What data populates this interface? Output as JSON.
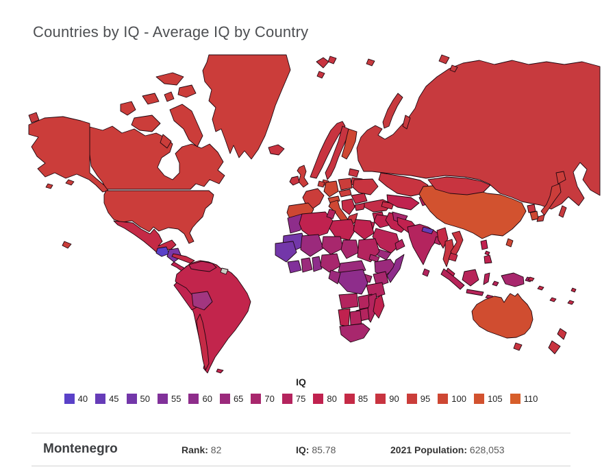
{
  "title": "Countries by IQ - Average IQ by Country",
  "legend": {
    "title": "IQ",
    "items": [
      {
        "value": "40",
        "color": "#5a41c8"
      },
      {
        "value": "45",
        "color": "#663cb8"
      },
      {
        "value": "50",
        "color": "#7337a9"
      },
      {
        "value": "55",
        "color": "#81319a"
      },
      {
        "value": "60",
        "color": "#8e2d8b"
      },
      {
        "value": "65",
        "color": "#9b2a7c"
      },
      {
        "value": "70",
        "color": "#a8276d"
      },
      {
        "value": "75",
        "color": "#b4245e"
      },
      {
        "value": "80",
        "color": "#c0224f"
      },
      {
        "value": "85",
        "color": "#c52a46"
      },
      {
        "value": "90",
        "color": "#c83440"
      },
      {
        "value": "95",
        "color": "#cb3d3a"
      },
      {
        "value": "100",
        "color": "#ce4733"
      },
      {
        "value": "105",
        "color": "#d2522f"
      },
      {
        "value": "110",
        "color": "#d75e2a"
      }
    ]
  },
  "info_bar": {
    "country": "Montenegro",
    "rank_label": "Rank:",
    "rank_value": "82",
    "iq_label": "IQ:",
    "iq_value": "85.78",
    "population_label": "2021 Population:",
    "population_value": "628,053"
  },
  "map": {
    "ocean_color": "#ffffff",
    "border_color": "#1d060f",
    "no_data_color": "#ccccc4",
    "regions": {
      "greenland": "#cb3d3a",
      "canada": "#cb3d3a",
      "usa": "#cb3d3a",
      "mexico": "#c52a46",
      "guatemala": "#5a41c8",
      "central-america": "#7b37a6",
      "costa-rica-panama": "#c0224f",
      "cuba": "#c52a46",
      "hispaniola": "#a8276d",
      "jamaica": "#a8276d",
      "south-america": "#c2254c",
      "venezuela": "#bd2351",
      "peru": "#c0224f",
      "chile": "#c52a46",
      "bolivia": "#a23680",
      "french-guiana": "#ccccc4",
      "falkland-islands": "#c2254c",
      "iceland": "#c83440",
      "uk": "#cb3d3a",
      "ireland": "#c83440",
      "norway": "#c83440",
      "sweden": "#c83440",
      "finland": "#ce4733",
      "denmark": "#cb3d3a",
      "baltics": "#c83440",
      "belarus": "#c83440",
      "poland": "#cb3d3a",
      "germany": "#ce4733",
      "benelux": "#cb3d3a",
      "france": "#cb3d3a",
      "iberia": "#ce4733",
      "italy": "#ce4733",
      "sicily": "#ce4733",
      "austria-alps": "#ce4733",
      "czech-slovakia": "#cb3d3a",
      "hungary-romania": "#c52a46",
      "balkans": "#c52a46",
      "bulgaria": "#c52a46",
      "greece": "#c83440",
      "ukraine": "#c83440",
      "russia": "#c73a3e",
      "kazakhstan": "#c83440",
      "central-asia": "#c0224f",
      "kyrgyz-tajik": "#b4245e",
      "caucasus": "#c52a46",
      "turkey": "#c42d48",
      "syria": "#c0224f",
      "levant": "#c0224f",
      "iraq": "#c0224f",
      "iran": "#c0224f",
      "saudi-arabia": "#ba2355",
      "yemen": "#9b2a7c",
      "oman": "#b4245e",
      "morocco": "#8e2d8b",
      "mauritania": "#7337a9",
      "algeria": "#c0224f",
      "tunisia": "#b4245e",
      "libya": "#c0224f",
      "egypt": "#c0224f",
      "mali": "#9b2a7c",
      "niger": "#a8276d",
      "chad": "#a8276d",
      "sudan": "#b4245e",
      "eritrea": "#a8276d",
      "senegal-guinea": "#7337a9",
      "sierra-liberia": "#81319a",
      "ivory-coast": "#9b2a7c",
      "ghana": "#8e2d8b",
      "nigeria": "#a8276d",
      "cameroon-car": "#9b2a7c",
      "ethiopia": "#9b2a7c",
      "somalia": "#8e2d8b",
      "kenya": "#a8276d",
      "uganda": "#a8276d",
      "tanzania": "#b4245e",
      "drc": "#8e2d8b",
      "congo-gabon": "#9b2a7c",
      "angola": "#b4245e",
      "zambia": "#b4245e",
      "mozambique": "#b4245e",
      "zimbabwe": "#b4245e",
      "namibia": "#c0224f",
      "botswana": "#b4245e",
      "south-africa": "#a8276d",
      "madagascar": "#c0224f",
      "afghanistan": "#a8276d",
      "pakistan": "#c0224f",
      "nepal": "#663cb8",
      "india": "#b4245e",
      "bangladesh": "#b4245e",
      "sri-lanka": "#b4245e",
      "myanmar": "#c52a46",
      "thailand": "#c83440",
      "vietnam": "#c83440",
      "cambodia": "#c52a46",
      "malaysia": "#c0224f",
      "indonesia": "#b72459",
      "philippines": "#c0224f",
      "papua-new-guinea": "#a8276d",
      "taiwan": "#ce4733",
      "china": "#d2522f",
      "mongolia": "#c83440",
      "north-korea": "#c83440",
      "south-korea": "#ce4733",
      "japan": "#cb3d3a",
      "australia": "#d04d30",
      "tasmania": "#c83440",
      "new-zealand": "#c83440",
      "pacific-islands": "#c52a46"
    }
  }
}
